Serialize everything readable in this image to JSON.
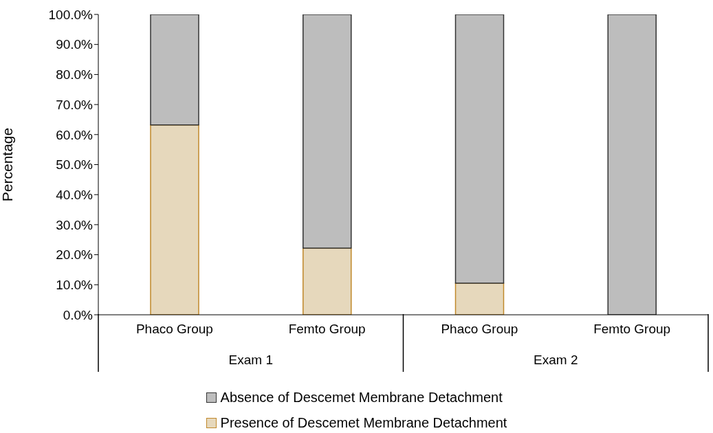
{
  "chart_data": {
    "type": "bar",
    "stacked": true,
    "ylabel": "Percentage",
    "categories": [
      "Phaco Group",
      "Femto Group",
      "Phaco Group",
      "Femto Group"
    ],
    "annotations": [
      "Exam 1",
      "Exam 2"
    ],
    "series": [
      {
        "name": "Presence of Descemet Membrane Detachment",
        "color": "#e6d8bc",
        "values": [
          63.2,
          22.2,
          10.5,
          0
        ]
      },
      {
        "name": "Absence of Descemet Membrane Detachment",
        "color": "#bdbdbd",
        "values": [
          36.8,
          77.8,
          89.5,
          100
        ]
      }
    ],
    "ylim": [
      0,
      100
    ],
    "yticks": [
      {
        "value": 0,
        "label": "0.0%"
      },
      {
        "value": 10,
        "label": "10.0%"
      },
      {
        "value": 20,
        "label": "20.0%"
      },
      {
        "value": 30,
        "label": "30.0%"
      },
      {
        "value": 40,
        "label": "40.0%"
      },
      {
        "value": 50,
        "label": "50.0%"
      },
      {
        "value": 60,
        "label": "60.0%"
      },
      {
        "value": 70,
        "label": "70.0%"
      },
      {
        "value": 80,
        "label": "80.0%"
      },
      {
        "value": 90,
        "label": "90.0%"
      },
      {
        "value": 100,
        "label": "100.0%"
      }
    ],
    "grid": false,
    "legend": "bottom"
  }
}
